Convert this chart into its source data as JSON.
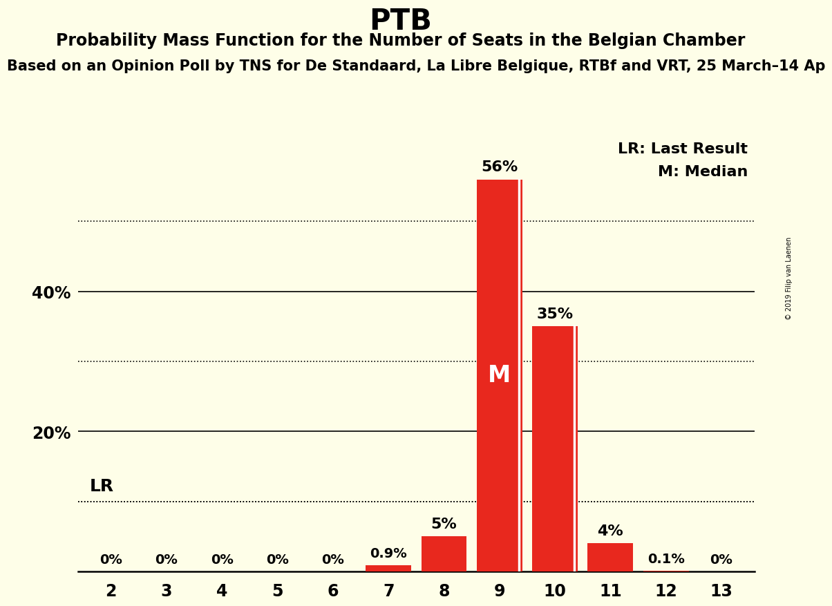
{
  "title": "PTB",
  "subtitle": "Probability Mass Function for the Number of Seats in the Belgian Chamber",
  "subsubtitle": "Based on an Opinion Poll by TNS for De Standaard, La Libre Belgique, RTBf and VRT, 25 March–14 Ap",
  "copyright": "© 2019 Filip van Laenen",
  "categories": [
    2,
    3,
    4,
    5,
    6,
    7,
    8,
    9,
    10,
    11,
    12,
    13
  ],
  "values": [
    0.0,
    0.0,
    0.0,
    0.0,
    0.0,
    0.9,
    5.0,
    56.0,
    35.0,
    4.0,
    0.1,
    0.0
  ],
  "labels": [
    "0%",
    "0%",
    "0%",
    "0%",
    "0%",
    "0.9%",
    "5%",
    "56%",
    "35%",
    "4%",
    "0.1%",
    "0%"
  ],
  "bar_color": "#e8281e",
  "background_color": "#fefee8",
  "median_seat": 9,
  "median_label": "M",
  "lr_value": 10.0,
  "lr_label": "LR",
  "legend_lr": "LR: Last Result",
  "legend_m": "M: Median",
  "yticks_solid": [
    20,
    40
  ],
  "yticks_dotted": [
    10,
    30,
    50
  ],
  "ylim": [
    0,
    62
  ],
  "title_fontsize": 30,
  "subtitle_fontsize": 17,
  "subsubtitle_fontsize": 15,
  "label_fontsize_small": 14,
  "label_fontsize_large": 16,
  "axis_fontsize": 17,
  "legend_fontsize": 16
}
